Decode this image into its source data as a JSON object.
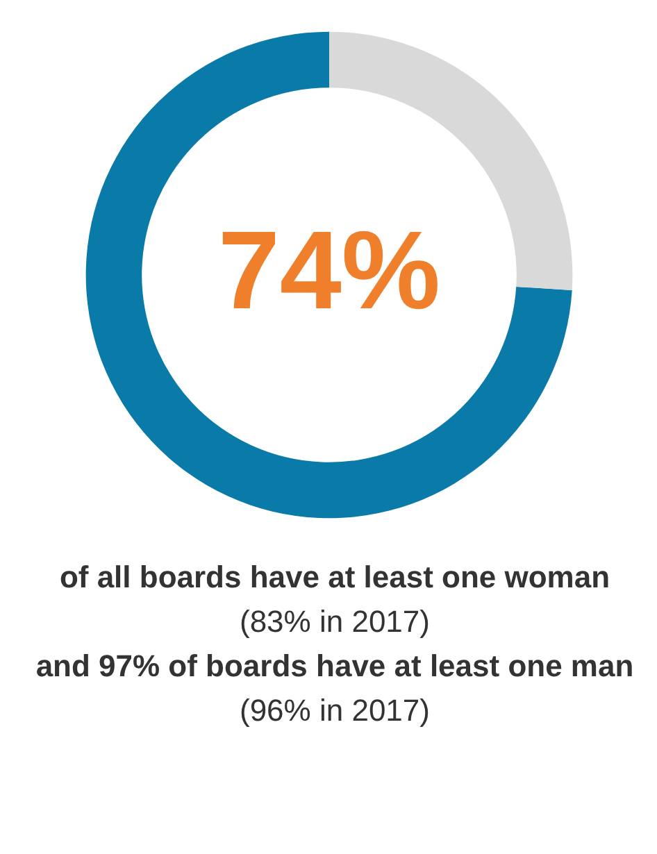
{
  "chart_data": {
    "type": "donut",
    "categories": [
      null,
      null
    ],
    "values": [
      74,
      26
    ],
    "colors": [
      "#0a7aa8",
      "#d9d9d9"
    ],
    "value_labels": [
      "74%",
      null
    ],
    "annotations": [
      "of all boards have at least one woman",
      "(83% in 2017)",
      "and 97% of boards have at least one man",
      "(96% in 2017)"
    ]
  }
}
